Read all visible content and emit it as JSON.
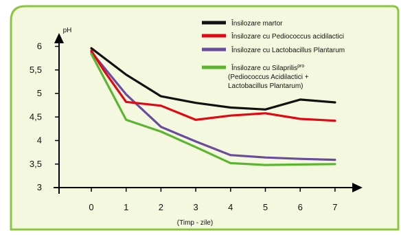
{
  "chart_data": {
    "type": "line",
    "ylabel": "pH",
    "xlabel": "(Timp - zile)",
    "x": [
      0,
      1,
      2,
      3,
      4,
      5,
      6,
      7
    ],
    "y_ticks": [
      "3",
      "3,5",
      "4",
      "4,5",
      "5",
      "5,5",
      "6"
    ],
    "x_ticks": [
      "0",
      "1",
      "2",
      "3",
      "4",
      "5",
      "6",
      "7"
    ],
    "ylim": [
      3,
      6.2
    ],
    "xlim": [
      0,
      7
    ],
    "grid": false,
    "legend_position": "top-right",
    "series": [
      {
        "name": "Însilozare martor",
        "color": "#111111",
        "x": [
          0,
          1,
          2,
          3,
          4,
          5,
          6,
          7
        ],
        "values": [
          5.96,
          5.4,
          4.94,
          4.8,
          4.7,
          4.66,
          4.87,
          4.81
        ]
      },
      {
        "name": "Însilozare cu Pediococcus acidilactici",
        "color": "#e30613",
        "x": [
          0,
          0.35,
          1,
          2,
          3,
          4,
          5,
          6,
          7
        ],
        "values": [
          5.91,
          5.5,
          4.82,
          4.74,
          4.44,
          4.53,
          4.58,
          4.46,
          4.42
        ]
      },
      {
        "name": "Însilozare cu Lactobacillus Plantarum",
        "color": "#6a4c9c",
        "x": [
          0,
          1,
          2,
          3,
          4,
          5,
          6,
          7
        ],
        "values": [
          5.88,
          4.98,
          4.29,
          3.98,
          3.69,
          3.64,
          3.61,
          3.59
        ]
      },
      {
        "name": "Însilozare cu Silaprilis",
        "name_sup": "pro",
        "name_line2": "(Pediococcus Acidilactici +",
        "name_line3": "Lactobacillus Plantarum)",
        "color": "#5cb531",
        "x": [
          0,
          1,
          2,
          3,
          4,
          5,
          6,
          7
        ],
        "values": [
          5.84,
          4.44,
          4.19,
          3.86,
          3.52,
          3.48,
          3.49,
          3.5
        ]
      }
    ]
  },
  "colors": {
    "panel_fill": "#f4f8de",
    "panel_border": "#8cc63f",
    "axis": "#000000"
  }
}
